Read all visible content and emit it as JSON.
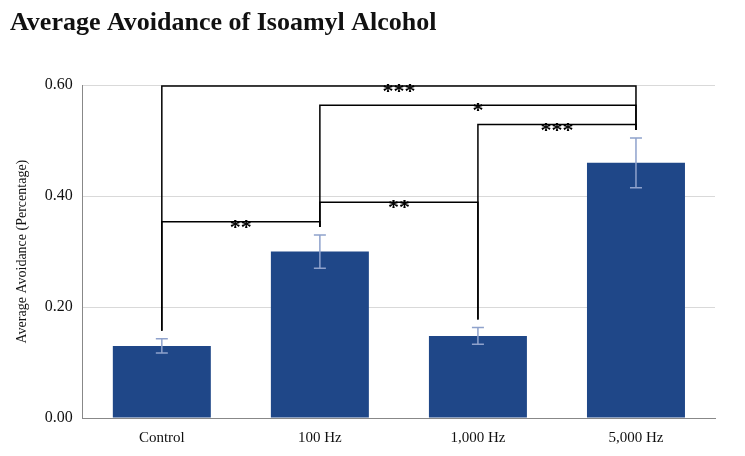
{
  "chart_data": {
    "type": "bar",
    "title": "Average Avoidance of Isoamyl Alcohol",
    "y_label": "Average Avoidance (Percentage)",
    "categories": [
      "Control",
      "100 Hz",
      "1,000 Hz",
      "5,000 Hz"
    ],
    "values": [
      0.13,
      0.3,
      0.148,
      0.46
    ],
    "errors": [
      0.013,
      0.03,
      0.015,
      0.045
    ],
    "color": "#1f4788",
    "ylim": [
      0,
      0.6
    ],
    "yticks": [
      {
        "value": 0,
        "label": "0.00"
      },
      {
        "value": 0.2,
        "label": "0.20"
      },
      {
        "value": 0.4,
        "label": "0.40"
      },
      {
        "value": 0.6,
        "label": "0.60"
      }
    ],
    "grid": true,
    "annotations": [
      {
        "from": "Control",
        "to": "100 Hz",
        "label": "**"
      },
      {
        "from": "100 Hz",
        "to": "1,000 Hz",
        "label": "**"
      },
      {
        "from": "1,000 Hz",
        "to": "5,000 Hz",
        "label": "***"
      },
      {
        "from": "100 Hz",
        "to": "5,000 Hz",
        "label": "*"
      },
      {
        "from": "Control",
        "to": "5,000 Hz",
        "label": "***"
      }
    ]
  }
}
